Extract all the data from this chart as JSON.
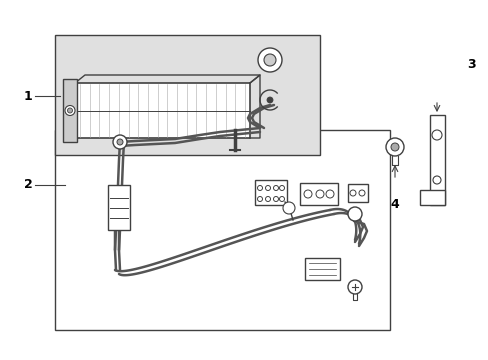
{
  "bg_color": "#ffffff",
  "line_color": "#404040",
  "label_color": "#000000",
  "fig_width": 4.89,
  "fig_height": 3.6,
  "dpi": 100,
  "hose_color": "#555555",
  "fill_color": "#e0e0e0"
}
